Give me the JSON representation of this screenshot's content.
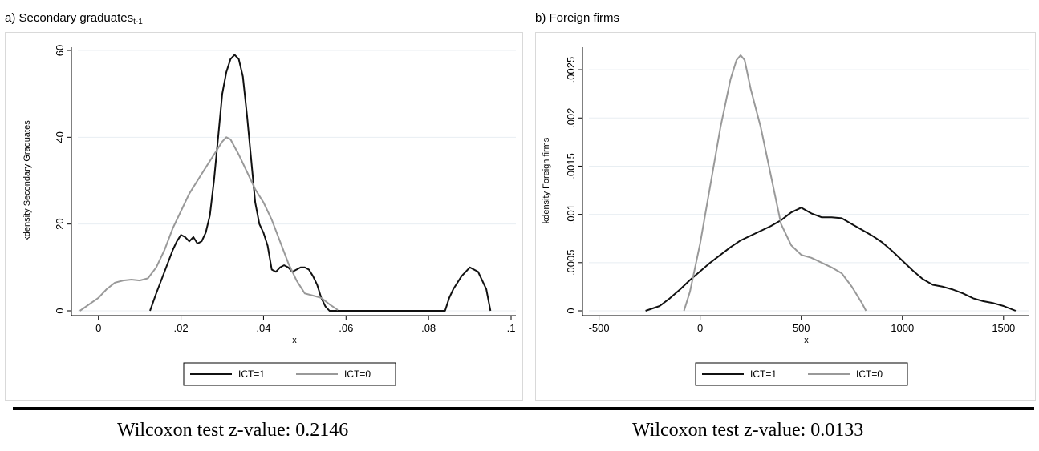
{
  "panel_a_title": "a) Secondary graduates",
  "panel_a_title_sub": "t-1",
  "panel_b_title": "b) Foreign firms",
  "wilcoxon_a": "Wilcoxon test z-value: 0.2146",
  "wilcoxon_b": "Wilcoxon test z-value: 0.0133",
  "chart_data": [
    {
      "type": "line",
      "title": "a) Secondary graduates t-1",
      "xlabel": "x",
      "ylabel": "kdensity Secondary Graduates",
      "xlim": [
        -0.005,
        0.1
      ],
      "ylim": [
        0,
        60
      ],
      "xticks": [
        0,
        0.02,
        0.04,
        0.06,
        0.08,
        0.1
      ],
      "xtick_labels": [
        "0",
        ".02",
        ".04",
        ".06",
        ".08",
        ".1"
      ],
      "yticks": [
        0,
        20,
        40,
        60
      ],
      "ytick_labels": [
        "0",
        "20",
        "40",
        "60"
      ],
      "grid": true,
      "legend": "bottom",
      "series": [
        {
          "name": "ICT=1",
          "color": "#111111",
          "x": [
            0.0125,
            0.014,
            0.016,
            0.018,
            0.019,
            0.02,
            0.021,
            0.022,
            0.023,
            0.024,
            0.025,
            0.026,
            0.027,
            0.028,
            0.029,
            0.03,
            0.031,
            0.032,
            0.033,
            0.034,
            0.035,
            0.036,
            0.037,
            0.038,
            0.039,
            0.04,
            0.041,
            0.042,
            0.043,
            0.044,
            0.045,
            0.046,
            0.047,
            0.048,
            0.049,
            0.05,
            0.051,
            0.052,
            0.053,
            0.054,
            0.055,
            0.056,
            0.06,
            0.07,
            0.08,
            0.084,
            0.085,
            0.086,
            0.088,
            0.09,
            0.092,
            0.094,
            0.095
          ],
          "y": [
            0,
            4,
            9,
            14,
            16,
            17.5,
            17,
            16,
            17,
            15.5,
            16,
            18,
            22,
            30,
            40,
            50,
            55,
            58,
            59,
            58,
            54,
            45,
            35,
            25,
            20,
            18,
            15,
            9.5,
            9,
            10,
            10.5,
            10,
            9,
            9.5,
            10,
            10,
            9.5,
            8,
            6,
            3,
            1,
            0,
            0,
            0,
            0,
            0,
            3,
            5,
            8,
            10,
            9,
            5,
            0
          ]
        },
        {
          "name": "ICT=0",
          "color": "#999999",
          "x": [
            -0.0045,
            0.0,
            0.002,
            0.004,
            0.006,
            0.008,
            0.01,
            0.012,
            0.014,
            0.016,
            0.018,
            0.02,
            0.022,
            0.024,
            0.026,
            0.028,
            0.03,
            0.031,
            0.032,
            0.034,
            0.036,
            0.038,
            0.04,
            0.042,
            0.044,
            0.046,
            0.048,
            0.05,
            0.052,
            0.054,
            0.056,
            0.058
          ],
          "y": [
            0,
            3,
            5,
            6.5,
            7,
            7.2,
            7,
            7.5,
            10,
            14,
            19,
            23,
            27,
            30,
            33,
            36,
            39,
            40,
            39.5,
            36,
            32,
            28,
            25,
            21,
            16,
            11,
            7,
            4,
            3.5,
            3,
            1.5,
            0.2
          ]
        }
      ]
    },
    {
      "type": "line",
      "title": "b) Foreign firms",
      "xlabel": "x",
      "ylabel": "kdensity Foreign firms",
      "xlim": [
        -550,
        1600
      ],
      "ylim": [
        0,
        0.0027
      ],
      "xticks": [
        -500,
        0,
        500,
        1000,
        1500
      ],
      "xtick_labels": [
        "-500",
        "0",
        "500",
        "1000",
        "1500"
      ],
      "yticks": [
        0,
        0.0005,
        0.001,
        0.0015,
        0.002,
        0.0025
      ],
      "ytick_labels": [
        "0",
        ".0005",
        ".001",
        ".0015",
        ".002",
        ".0025"
      ],
      "grid": true,
      "legend": "bottom",
      "series": [
        {
          "name": "ICT=1",
          "color": "#111111",
          "x": [
            -270,
            -200,
            -150,
            -100,
            -50,
            0,
            50,
            100,
            150,
            200,
            250,
            300,
            350,
            400,
            450,
            500,
            550,
            600,
            650,
            700,
            750,
            800,
            850,
            900,
            950,
            1000,
            1050,
            1100,
            1150,
            1200,
            1250,
            1300,
            1350,
            1400,
            1450,
            1500,
            1560
          ],
          "y": [
            0,
            5e-05,
            0.00013,
            0.00022,
            0.00032,
            0.00041,
            0.0005,
            0.00058,
            0.00066,
            0.00073,
            0.00078,
            0.00083,
            0.00088,
            0.00094,
            0.00102,
            0.00107,
            0.00101,
            0.00097,
            0.00097,
            0.00096,
            0.0009,
            0.00084,
            0.00078,
            0.00071,
            0.00062,
            0.00052,
            0.00042,
            0.00033,
            0.00027,
            0.00025,
            0.00022,
            0.00018,
            0.00013,
            0.0001,
            8e-05,
            5e-05,
            0.0
          ]
        },
        {
          "name": "ICT=0",
          "color": "#999999",
          "x": [
            -80,
            -50,
            0,
            50,
            100,
            150,
            180,
            200,
            220,
            250,
            300,
            350,
            400,
            450,
            500,
            550,
            600,
            650,
            700,
            750,
            800,
            820
          ],
          "y": [
            0,
            0.0002,
            0.0007,
            0.0013,
            0.0019,
            0.0024,
            0.0026,
            0.00265,
            0.0026,
            0.0023,
            0.0019,
            0.0014,
            0.0009,
            0.00068,
            0.00058,
            0.00055,
            0.0005,
            0.00045,
            0.00039,
            0.00025,
            8e-05,
            0.0
          ]
        }
      ]
    }
  ]
}
